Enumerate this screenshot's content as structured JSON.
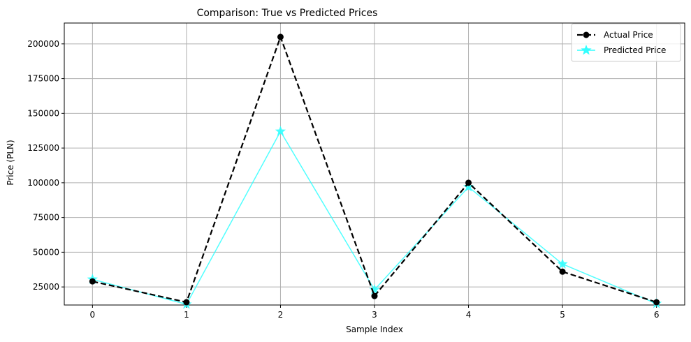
{
  "chart_data": {
    "type": "line",
    "title": "Comparison: True vs Predicted Prices",
    "xlabel": "Sample Index",
    "ylabel": "Price (PLN)",
    "x": [
      0,
      1,
      2,
      3,
      4,
      5,
      6
    ],
    "xlim": [
      -0.3,
      6.3
    ],
    "ylim": [
      12000,
      215000
    ],
    "xticks": [
      0,
      1,
      2,
      3,
      4,
      5,
      6
    ],
    "yticks": [
      25000,
      50000,
      75000,
      100000,
      125000,
      150000,
      175000,
      200000
    ],
    "grid": true,
    "legend_position": "top-right",
    "series": [
      {
        "name": "Actual Price",
        "values": [
          29000,
          14000,
          205000,
          18500,
          100000,
          36000,
          14000
        ],
        "color": "#000000",
        "line_style": "dashed",
        "marker": "circle"
      },
      {
        "name": "Predicted Price",
        "values": [
          30500,
          12500,
          137000,
          23000,
          97000,
          41500,
          13000
        ],
        "color": "#33ffff",
        "line_style": "solid",
        "marker": "star"
      }
    ]
  }
}
